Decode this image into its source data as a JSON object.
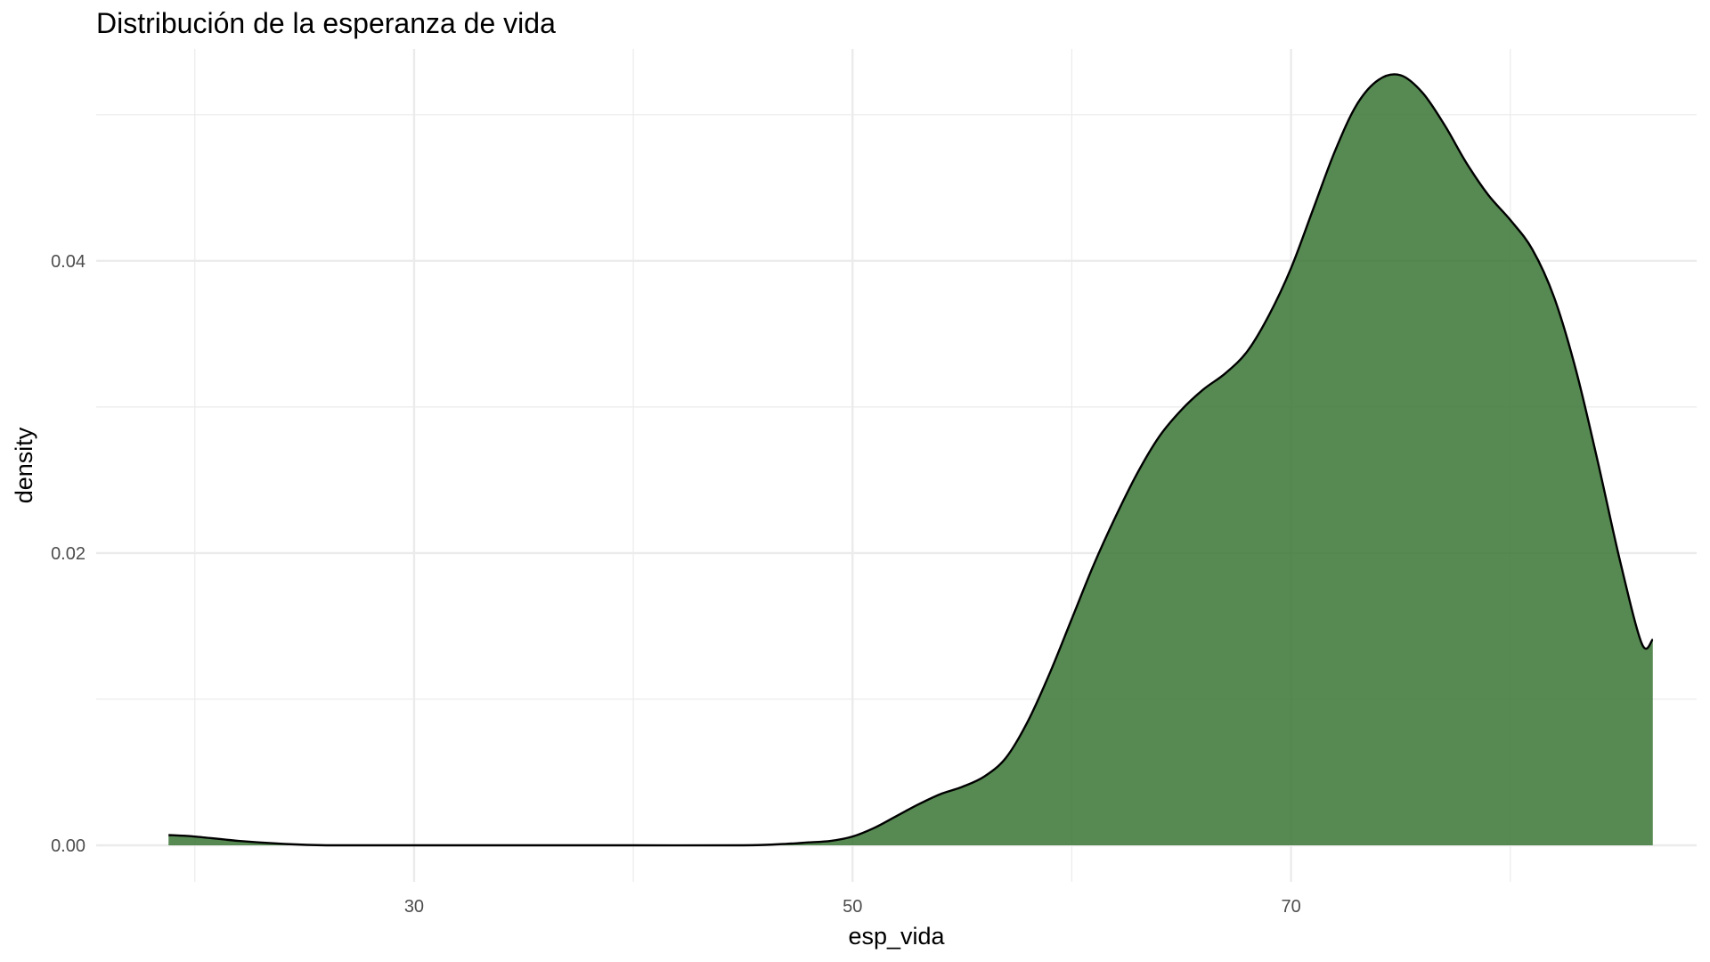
{
  "chart_data": {
    "type": "area",
    "title": "Distribución de la esperanza de vida",
    "xlabel": "esp_vida",
    "ylabel": "density",
    "xlim": [
      15.5,
      88.5
    ],
    "ylim": [
      -0.0025,
      0.0545
    ],
    "x_ticks": [
      30,
      50,
      70
    ],
    "x_tick_labels": [
      "30",
      "50",
      "70"
    ],
    "x_minor_ticks": [
      20,
      40,
      60,
      80
    ],
    "y_ticks": [
      0.0,
      0.02,
      0.04
    ],
    "y_tick_labels": [
      "0.00",
      "0.02",
      "0.04"
    ],
    "y_minor_ticks": [
      0.01,
      0.03,
      0.05
    ],
    "grid": true,
    "legend": "none",
    "colors": {
      "fill": "#3a7535",
      "outline": "#000000",
      "grid": "#ebebeb"
    },
    "fill_opacity": 0.85,
    "series": [
      {
        "x": [
          18.8,
          20,
          22,
          24,
          26,
          30,
          35,
          40,
          45,
          47,
          48,
          49,
          50,
          51,
          52,
          53,
          54,
          55,
          56,
          57,
          58,
          59,
          60,
          61,
          62,
          63,
          64,
          65,
          66,
          67,
          68,
          69,
          70,
          71,
          72,
          73,
          74,
          75,
          76,
          77,
          78,
          79,
          80,
          81,
          82,
          83,
          84,
          85,
          86,
          86.5
        ],
        "y": [
          0.0007,
          0.0006,
          0.0003,
          0.0001,
          0.0,
          0.0,
          0.0,
          0.0,
          0.0,
          0.0001,
          0.0002,
          0.0003,
          0.0006,
          0.0012,
          0.002,
          0.0028,
          0.0035,
          0.004,
          0.0047,
          0.006,
          0.0085,
          0.0118,
          0.0155,
          0.0192,
          0.0225,
          0.0255,
          0.028,
          0.0298,
          0.0312,
          0.0323,
          0.0338,
          0.0363,
          0.0395,
          0.0435,
          0.0475,
          0.0507,
          0.0524,
          0.0527,
          0.0515,
          0.0493,
          0.0467,
          0.0445,
          0.0428,
          0.0408,
          0.0375,
          0.0325,
          0.0262,
          0.0195,
          0.0138,
          0.0141
        ]
      }
    ]
  }
}
